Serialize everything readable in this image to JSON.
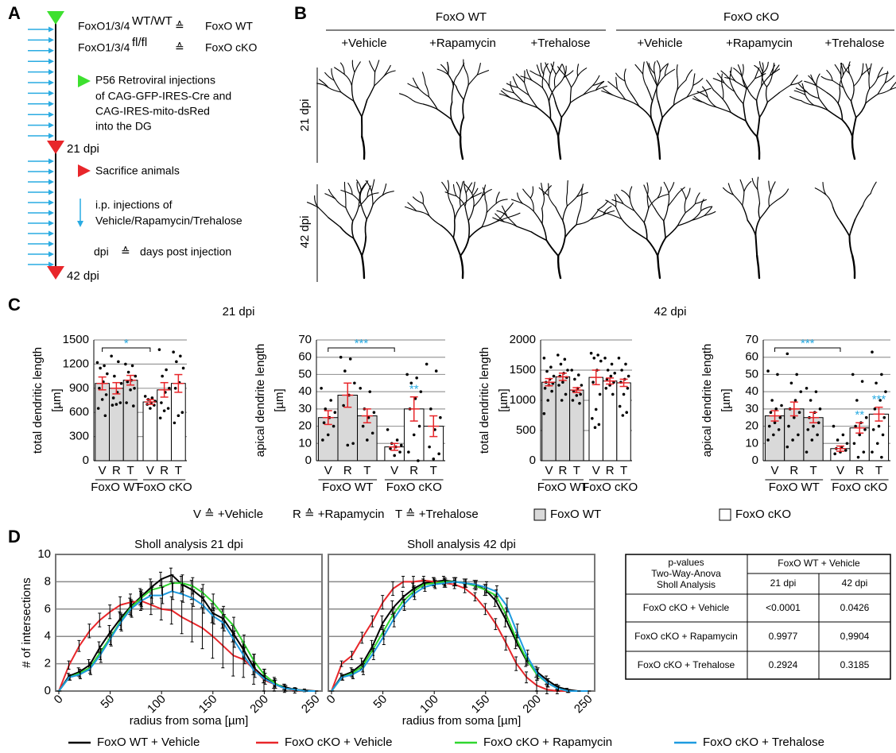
{
  "panel_labels": [
    "A",
    "B",
    "C",
    "D"
  ],
  "timeline": {
    "genotypes": [
      {
        "name": "FoxO1/3/4",
        "superscript": "WT/WT",
        "symbol": "≙",
        "label": "FoxO WT"
      },
      {
        "name": "FoxO1/3/4",
        "superscript": "fl/fl",
        "symbol": "≙",
        "label": "FoxO cKO"
      }
    ],
    "injection": [
      "P56 Retroviral injections",
      "of CAG-GFP-IRES-Cre and",
      "CAG-IRES-mito-dsRed",
      "into the DG"
    ],
    "dpi_21": "21 dpi",
    "sacrifice": "Sacrifice animals",
    "ip": [
      "i.p. injections of",
      "Vehicle/Rapamycin/Trehalose"
    ],
    "dpi_def": {
      "term": "dpi",
      "symbol": "≙",
      "meaning": "days post injection"
    },
    "dpi_42": "42 dpi"
  },
  "morphology": {
    "groups": [
      "FoxO WT",
      "FoxO cKO"
    ],
    "conditions": [
      "+Vehicle",
      "+Rapamycin",
      "+Trehalose",
      "+Vehicle",
      "+Rapamycin",
      "+Trehalose"
    ],
    "rows": [
      "21 dpi",
      "42 dpi"
    ]
  },
  "bar_panel": {
    "headings": [
      "21 dpi",
      "42 dpi"
    ],
    "abbreviations": [
      "V ≙ +Vehicle",
      "R ≙ +Rapamycin",
      "T ≙ +Trehalose"
    ],
    "legend": [
      {
        "name": "FoxO WT",
        "color": "#d9d9d9"
      },
      {
        "name": "FoxO cKO",
        "color": "#ffffff"
      }
    ]
  },
  "chart_data": [
    {
      "type": "bar",
      "ylabel": [
        "total dendritic length",
        "[µm]"
      ],
      "categories": [
        "V",
        "R",
        "T",
        "V",
        "R",
        "T"
      ],
      "groups": [
        "FoxO WT",
        "FoxO cKO"
      ],
      "values": [
        960,
        900,
        1000,
        730,
        880,
        960
      ],
      "errors": [
        80,
        70,
        60,
        30,
        90,
        110
      ],
      "colors": [
        "#d9d9d9",
        "#d9d9d9",
        "#d9d9d9",
        "#ffffff",
        "#ffffff",
        "#ffffff"
      ],
      "error_color": "#e8262a",
      "points": [
        [
          1220,
          1180,
          1150,
          1080,
          980,
          900,
          820,
          760,
          650,
          560
        ],
        [
          1300,
          1230,
          1050,
          960,
          850,
          780,
          720,
          700,
          690
        ],
        [
          1200,
          1180,
          1100,
          1050,
          1000,
          980,
          900,
          880,
          720,
          680
        ],
        [
          800,
          780,
          760,
          740,
          720,
          700,
          690,
          650
        ],
        [
          1380,
          1130,
          1050,
          900,
          850,
          720,
          650,
          620,
          530
        ],
        [
          1350,
          1300,
          1230,
          1150,
          970,
          900,
          600,
          560,
          470
        ]
      ],
      "bracket_labels": [
        null,
        null,
        null,
        "*",
        null,
        null
      ],
      "annotation_color": "#29abe2",
      "ylim": [
        0,
        1500
      ],
      "yticks": [
        0,
        300,
        600,
        900,
        1200,
        1500
      ]
    },
    {
      "type": "bar",
      "ylabel": [
        "apical dendrite length",
        "[µm]"
      ],
      "categories": [
        "V",
        "R",
        "T",
        "V",
        "R",
        "T"
      ],
      "groups": [
        "FoxO WT",
        "FoxO cKO"
      ],
      "values": [
        25,
        38,
        26,
        8,
        30,
        20
      ],
      "errors": [
        4,
        7,
        4,
        2,
        7,
        6
      ],
      "colors": [
        "#d9d9d9",
        "#d9d9d9",
        "#d9d9d9",
        "#ffffff",
        "#ffffff",
        "#ffffff"
      ],
      "error_color": "#e8262a",
      "points": [
        [
          42,
          35,
          30,
          28,
          25,
          22,
          20,
          15,
          12
        ],
        [
          60,
          59,
          52,
          45,
          38,
          32,
          10,
          9
        ],
        [
          42,
          40,
          30,
          28,
          25,
          20,
          16,
          12
        ],
        [
          18,
          12,
          10,
          9,
          8,
          7,
          5,
          3
        ],
        [
          50,
          48,
          45,
          40,
          36,
          30,
          20,
          15,
          5,
          0
        ],
        [
          56,
          52,
          30,
          25,
          18,
          8,
          4,
          1
        ]
      ],
      "bracket_labels": [
        null,
        null,
        null,
        "***",
        null,
        null
      ],
      "labels_above": [
        null,
        null,
        null,
        null,
        "**",
        null
      ],
      "annotation_color": "#29abe2",
      "ylim": [
        0,
        70
      ],
      "yticks": [
        0,
        10,
        20,
        30,
        40,
        50,
        60,
        70
      ]
    },
    {
      "type": "bar",
      "ylabel": [
        "total dendritic length",
        "[µm]"
      ],
      "categories": [
        "V",
        "R",
        "T",
        "V",
        "R",
        "T"
      ],
      "groups": [
        "FoxO WT",
        "FoxO cKO"
      ],
      "values": [
        1300,
        1390,
        1170,
        1380,
        1320,
        1290
      ],
      "errors": [
        60,
        60,
        40,
        120,
        50,
        60
      ],
      "colors": [
        "#d9d9d9",
        "#d9d9d9",
        "#d9d9d9",
        "#ffffff",
        "#ffffff",
        "#ffffff"
      ],
      "error_color": "#e8262a",
      "points": [
        [
          1700,
          1550,
          1480,
          1400,
          1350,
          1300,
          1280,
          1250,
          1200,
          1150,
          1000,
          780
        ],
        [
          1750,
          1680,
          1600,
          1500,
          1450,
          1400,
          1380,
          1300,
          1250,
          1100,
          1000
        ],
        [
          1500,
          1420,
          1350,
          1250,
          1200,
          1150,
          1100,
          1080,
          1000,
          950
        ],
        [
          1780,
          1750,
          1700,
          1650,
          1500,
          1300,
          1100,
          850,
          700,
          600,
          550
        ],
        [
          1700,
          1600,
          1500,
          1450,
          1400,
          1350,
          1300,
          1250,
          1200,
          1100
        ],
        [
          1700,
          1600,
          1500,
          1400,
          1350,
          1300,
          1200,
          1100,
          900,
          800,
          750
        ]
      ],
      "ylim": [
        0,
        2000
      ],
      "yticks": [
        0,
        500,
        1000,
        1500,
        2000
      ]
    },
    {
      "type": "bar",
      "ylabel": [
        "apical dendrite length",
        "[µm]"
      ],
      "categories": [
        "V",
        "R",
        "T",
        "V",
        "R",
        "T"
      ],
      "groups": [
        "FoxO WT",
        "FoxO cKO"
      ],
      "values": [
        26,
        30,
        25,
        7,
        19,
        27
      ],
      "errors": [
        3,
        4,
        3,
        1.5,
        3,
        4
      ],
      "colors": [
        "#d9d9d9",
        "#d9d9d9",
        "#d9d9d9",
        "#ffffff",
        "#ffffff",
        "#ffffff"
      ],
      "error_color": "#e8262a",
      "points": [
        [
          52,
          50,
          35,
          32,
          30,
          28,
          25,
          22,
          20,
          18,
          15,
          12
        ],
        [
          62,
          50,
          45,
          40,
          35,
          30,
          28,
          25,
          20,
          15,
          12,
          8
        ],
        [
          42,
          40,
          35,
          30,
          28,
          25,
          22,
          20,
          18,
          15,
          12,
          5
        ],
        [
          20,
          15,
          12,
          10,
          8,
          7,
          6,
          5,
          4
        ],
        [
          50,
          46,
          35,
          25,
          22,
          20,
          18,
          15,
          10,
          5,
          2
        ],
        [
          63,
          50,
          45,
          40,
          35,
          30,
          25,
          20,
          18,
          15,
          10,
          5,
          2
        ]
      ],
      "bracket_labels": [
        null,
        null,
        null,
        "***",
        null,
        null
      ],
      "labels_above": [
        null,
        null,
        null,
        null,
        "**",
        "***"
      ],
      "annotation_color": "#29abe2",
      "ylim": [
        0,
        70
      ],
      "yticks": [
        0,
        10,
        20,
        30,
        40,
        50,
        60,
        70
      ]
    },
    {
      "type": "line",
      "title": "Sholl analysis 21 dpi",
      "xlabel": "radius from soma [µm]",
      "ylabel": "# of intersections",
      "ytick_labels": true,
      "x": [
        0,
        10,
        20,
        30,
        40,
        50,
        60,
        70,
        80,
        90,
        100,
        110,
        120,
        130,
        140,
        150,
        160,
        170,
        180,
        190,
        200,
        210,
        220,
        230,
        240,
        250
      ],
      "xlim": [
        0,
        250
      ],
      "xticks": [
        0,
        50,
        100,
        150,
        200,
        250
      ],
      "ylim": [
        0,
        10
      ],
      "yticks": [
        0,
        2,
        4,
        6,
        8,
        10
      ],
      "series": [
        {
          "name": "FoxO WT + Vehicle",
          "color": "#000000",
          "values": [
            0,
            1.1,
            1.4,
            1.9,
            3.2,
            4.3,
            5.3,
            6.2,
            6.9,
            7.6,
            8.2,
            8.5,
            7.8,
            7.4,
            6.8,
            5.7,
            5.3,
            4.2,
            3,
            1.7,
            1,
            0.5,
            0.3,
            0.1,
            0.05,
            0
          ],
          "errors": [
            0,
            0.2,
            0.3,
            0.4,
            0.4,
            0.5,
            0.5,
            0.6,
            0.6,
            0.6,
            0.5,
            0.5,
            0.6,
            0.7,
            0.7,
            0.7,
            0.7,
            0.6,
            0.6,
            0.5,
            0.4,
            0.3,
            0.2,
            0.1,
            0.1,
            0
          ]
        },
        {
          "name": "FoxO cKO + Vehicle",
          "color": "#e8262a",
          "values": [
            0,
            1.9,
            3.3,
            4.4,
            5.2,
            5.8,
            6.3,
            6.5,
            6.6,
            6.3,
            6,
            5.9,
            5.4,
            5,
            4.6,
            4,
            3.3,
            2.6,
            2.3,
            1.6,
            0.8,
            0.5,
            0.2,
            0.05,
            0,
            0
          ],
          "errors": [
            0,
            0.3,
            0.4,
            0.5,
            0.5,
            0.5,
            0.6,
            0.6,
            0.7,
            0.7,
            0.8,
            1,
            1.2,
            1.4,
            1.5,
            1.6,
            1.6,
            1.5,
            1.3,
            1.1,
            0.8,
            0.5,
            0.3,
            0.2,
            0,
            0
          ]
        },
        {
          "name": "FoxO cKO + Rapamycin",
          "color": "#2fd62f",
          "values": [
            0,
            1,
            1.3,
            1.7,
            2.8,
            3.9,
            5.1,
            6.1,
            6.8,
            7.4,
            7.6,
            7.9,
            7.9,
            7.7,
            7.2,
            6.5,
            5.6,
            4.8,
            3.5,
            2.2,
            1.2,
            0.6,
            0.2,
            0.1,
            0,
            0
          ],
          "errors": [
            0,
            0.2,
            0.3,
            0.4,
            0.5,
            0.5,
            0.6,
            0.6,
            0.6,
            0.6,
            0.6,
            0.6,
            0.6,
            0.6,
            0.6,
            0.6,
            0.6,
            0.6,
            0.6,
            0.5,
            0.4,
            0.3,
            0.2,
            0.1,
            0,
            0
          ]
        },
        {
          "name": "FoxO cKO + Trehalose",
          "color": "#1e9be0",
          "values": [
            0,
            1,
            1.2,
            1.6,
            2.6,
            3.8,
            5,
            6,
            6.6,
            7,
            7,
            7.3,
            7.1,
            6.8,
            6.3,
            5.5,
            5,
            3.8,
            2.6,
            1.5,
            0.9,
            0.5,
            0.2,
            0.1,
            0,
            0
          ],
          "errors": [
            0,
            0.2,
            0.3,
            0.4,
            0.5,
            0.5,
            0.6,
            0.6,
            0.6,
            0.6,
            0.6,
            0.6,
            0.6,
            0.6,
            0.6,
            0.6,
            0.6,
            0.6,
            0.6,
            0.5,
            0.4,
            0.3,
            0.2,
            0.1,
            0,
            0
          ]
        }
      ]
    },
    {
      "type": "line",
      "title": "Sholl analysis 42 dpi",
      "xlabel": "radius from soma [µm]",
      "ytick_labels": false,
      "x": [
        0,
        10,
        20,
        30,
        40,
        50,
        60,
        70,
        80,
        90,
        100,
        110,
        120,
        130,
        140,
        150,
        160,
        170,
        180,
        190,
        200,
        210,
        220,
        230,
        240,
        250
      ],
      "xlim": [
        0,
        250
      ],
      "xticks": [
        0,
        50,
        100,
        150,
        200,
        250
      ],
      "ylim": [
        0,
        10
      ],
      "yticks": [
        0,
        2,
        4,
        6,
        8,
        10
      ],
      "series": [
        {
          "color": "#000000",
          "values": [
            0,
            1.1,
            1.4,
            2,
            3.3,
            5,
            6.1,
            6.9,
            7.5,
            7.9,
            8,
            8.1,
            8,
            7.9,
            7.8,
            7.4,
            6.6,
            5.2,
            3.6,
            2.2,
            1.4,
            0.8,
            0.3,
            0.1,
            0,
            0
          ],
          "errors": [
            0,
            0.2,
            0.3,
            0.4,
            0.4,
            0.5,
            0.5,
            0.4,
            0.4,
            0.3,
            0.3,
            0.3,
            0.3,
            0.3,
            0.3,
            0.4,
            0.4,
            0.5,
            0.5,
            0.4,
            0.4,
            0.3,
            0.2,
            0.1,
            0,
            0
          ]
        },
        {
          "color": "#e8262a",
          "values": [
            0,
            2,
            2.6,
            3.9,
            5.1,
            6.5,
            7.5,
            8,
            8,
            8.1,
            8,
            7.9,
            7.8,
            7.5,
            6.9,
            6,
            4.9,
            3.5,
            2,
            1,
            0.4,
            0.1,
            0,
            0,
            0,
            0
          ],
          "errors": [
            0,
            0.2,
            0.3,
            0.4,
            0.4,
            0.5,
            0.5,
            0.4,
            0.4,
            0.3,
            0.3,
            0.3,
            0.3,
            0.3,
            0.3,
            0.4,
            0.4,
            0.5,
            0.5,
            0.4,
            0.4,
            0.3,
            0.2,
            0.1,
            0,
            0
          ]
        },
        {
          "color": "#2fd62f",
          "values": [
            0,
            1,
            1.3,
            1.8,
            3,
            4.3,
            5.6,
            6.6,
            7.3,
            7.8,
            7.9,
            8,
            8,
            7.9,
            7.7,
            7.4,
            7,
            5.6,
            3.8,
            2.3,
            1.2,
            0.6,
            0.2,
            0,
            0,
            0
          ],
          "errors": [
            0,
            0.2,
            0.3,
            0.4,
            0.4,
            0.5,
            0.5,
            0.4,
            0.4,
            0.3,
            0.3,
            0.3,
            0.3,
            0.3,
            0.3,
            0.4,
            0.4,
            0.5,
            0.5,
            0.4,
            0.4,
            0.3,
            0.2,
            0.1,
            0,
            0
          ]
        },
        {
          "color": "#1e9be0",
          "values": [
            0,
            1,
            1.2,
            1.6,
            2.7,
            3.9,
            5.2,
            6.3,
            7.1,
            7.6,
            7.8,
            7.9,
            8,
            7.9,
            7.8,
            7.6,
            7.3,
            6.3,
            4.4,
            2.6,
            1.3,
            0.6,
            0.2,
            0,
            0,
            0
          ],
          "errors": [
            0,
            0.2,
            0.3,
            0.4,
            0.4,
            0.5,
            0.5,
            0.4,
            0.4,
            0.3,
            0.3,
            0.3,
            0.3,
            0.3,
            0.3,
            0.4,
            0.4,
            0.5,
            0.5,
            0.4,
            0.4,
            0.3,
            0.2,
            0.1,
            0,
            0
          ]
        }
      ]
    }
  ],
  "table": {
    "header": [
      "p-values",
      "Two-Way-Anova",
      "Sholl Analysis"
    ],
    "group": "FoxO WT + Vehicle",
    "columns": [
      "21 dpi",
      "42 dpi"
    ],
    "rows": [
      [
        "FoxO cKO + Vehicle",
        "<0.0001",
        "0.0426"
      ],
      [
        "FoxO cKO + Rapamycin",
        "0.9977",
        "0,9904"
      ],
      [
        "FoxO cKO + Trehalose",
        "0.2924",
        "0.3185"
      ]
    ]
  }
}
